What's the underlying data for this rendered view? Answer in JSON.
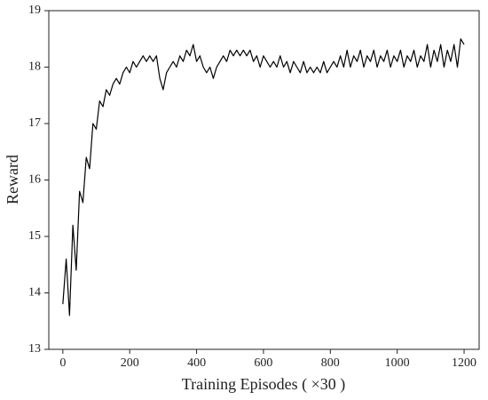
{
  "chart_data": {
    "type": "line",
    "xlabel": "Training Episodes ( ×30 )",
    "ylabel": "Reward",
    "x": [
      0,
      10,
      20,
      30,
      40,
      50,
      60,
      70,
      80,
      90,
      100,
      110,
      120,
      130,
      140,
      150,
      160,
      170,
      180,
      190,
      200,
      210,
      220,
      230,
      240,
      250,
      260,
      270,
      280,
      290,
      300,
      310,
      320,
      330,
      340,
      350,
      360,
      370,
      380,
      390,
      400,
      410,
      420,
      430,
      440,
      450,
      460,
      470,
      480,
      490,
      500,
      510,
      520,
      530,
      540,
      550,
      560,
      570,
      580,
      590,
      600,
      610,
      620,
      630,
      640,
      650,
      660,
      670,
      680,
      690,
      700,
      710,
      720,
      730,
      740,
      750,
      760,
      770,
      780,
      790,
      800,
      810,
      820,
      830,
      840,
      850,
      860,
      870,
      880,
      890,
      900,
      910,
      920,
      930,
      940,
      950,
      960,
      970,
      980,
      990,
      1000,
      1010,
      1020,
      1030,
      1040,
      1050,
      1060,
      1070,
      1080,
      1090,
      1100,
      1110,
      1120,
      1130,
      1140,
      1150,
      1160,
      1170,
      1180,
      1190,
      1200
    ],
    "series": [
      {
        "color": "#000000",
        "values": [
          13.8,
          14.6,
          13.6,
          15.2,
          14.4,
          15.8,
          15.6,
          16.4,
          16.2,
          17.0,
          16.9,
          17.4,
          17.3,
          17.6,
          17.5,
          17.7,
          17.8,
          17.7,
          17.9,
          18.0,
          17.9,
          18.1,
          18.0,
          18.1,
          18.2,
          18.1,
          18.2,
          18.1,
          18.2,
          17.8,
          17.6,
          17.9,
          18.0,
          18.1,
          18.0,
          18.2,
          18.1,
          18.3,
          18.2,
          18.4,
          18.1,
          18.2,
          18.0,
          17.9,
          18.0,
          17.8,
          18.0,
          18.1,
          18.2,
          18.1,
          18.3,
          18.2,
          18.3,
          18.2,
          18.3,
          18.2,
          18.3,
          18.1,
          18.2,
          18.0,
          18.2,
          18.1,
          18.0,
          18.1,
          18.0,
          18.2,
          18.0,
          18.1,
          17.9,
          18.1,
          18.0,
          17.9,
          18.1,
          17.9,
          18.0,
          17.9,
          18.0,
          17.9,
          18.1,
          17.9,
          18.0,
          18.1,
          18.0,
          18.2,
          18.0,
          18.3,
          18.0,
          18.2,
          18.1,
          18.3,
          18.0,
          18.2,
          18.1,
          18.3,
          18.0,
          18.2,
          18.1,
          18.3,
          18.0,
          18.2,
          18.1,
          18.3,
          18.0,
          18.2,
          18.1,
          18.3,
          18.0,
          18.2,
          18.1,
          18.4,
          18.0,
          18.3,
          18.1,
          18.4,
          18.0,
          18.3,
          18.1,
          18.4,
          18.0,
          18.5,
          18.4
        ]
      }
    ],
    "xlim": [
      -42,
      1245
    ],
    "xticks": [
      0,
      200,
      400,
      600,
      800,
      1000,
      1200
    ],
    "ylim": [
      13,
      19
    ],
    "yticks": [
      13,
      14,
      15,
      16,
      17,
      18,
      19
    ]
  }
}
